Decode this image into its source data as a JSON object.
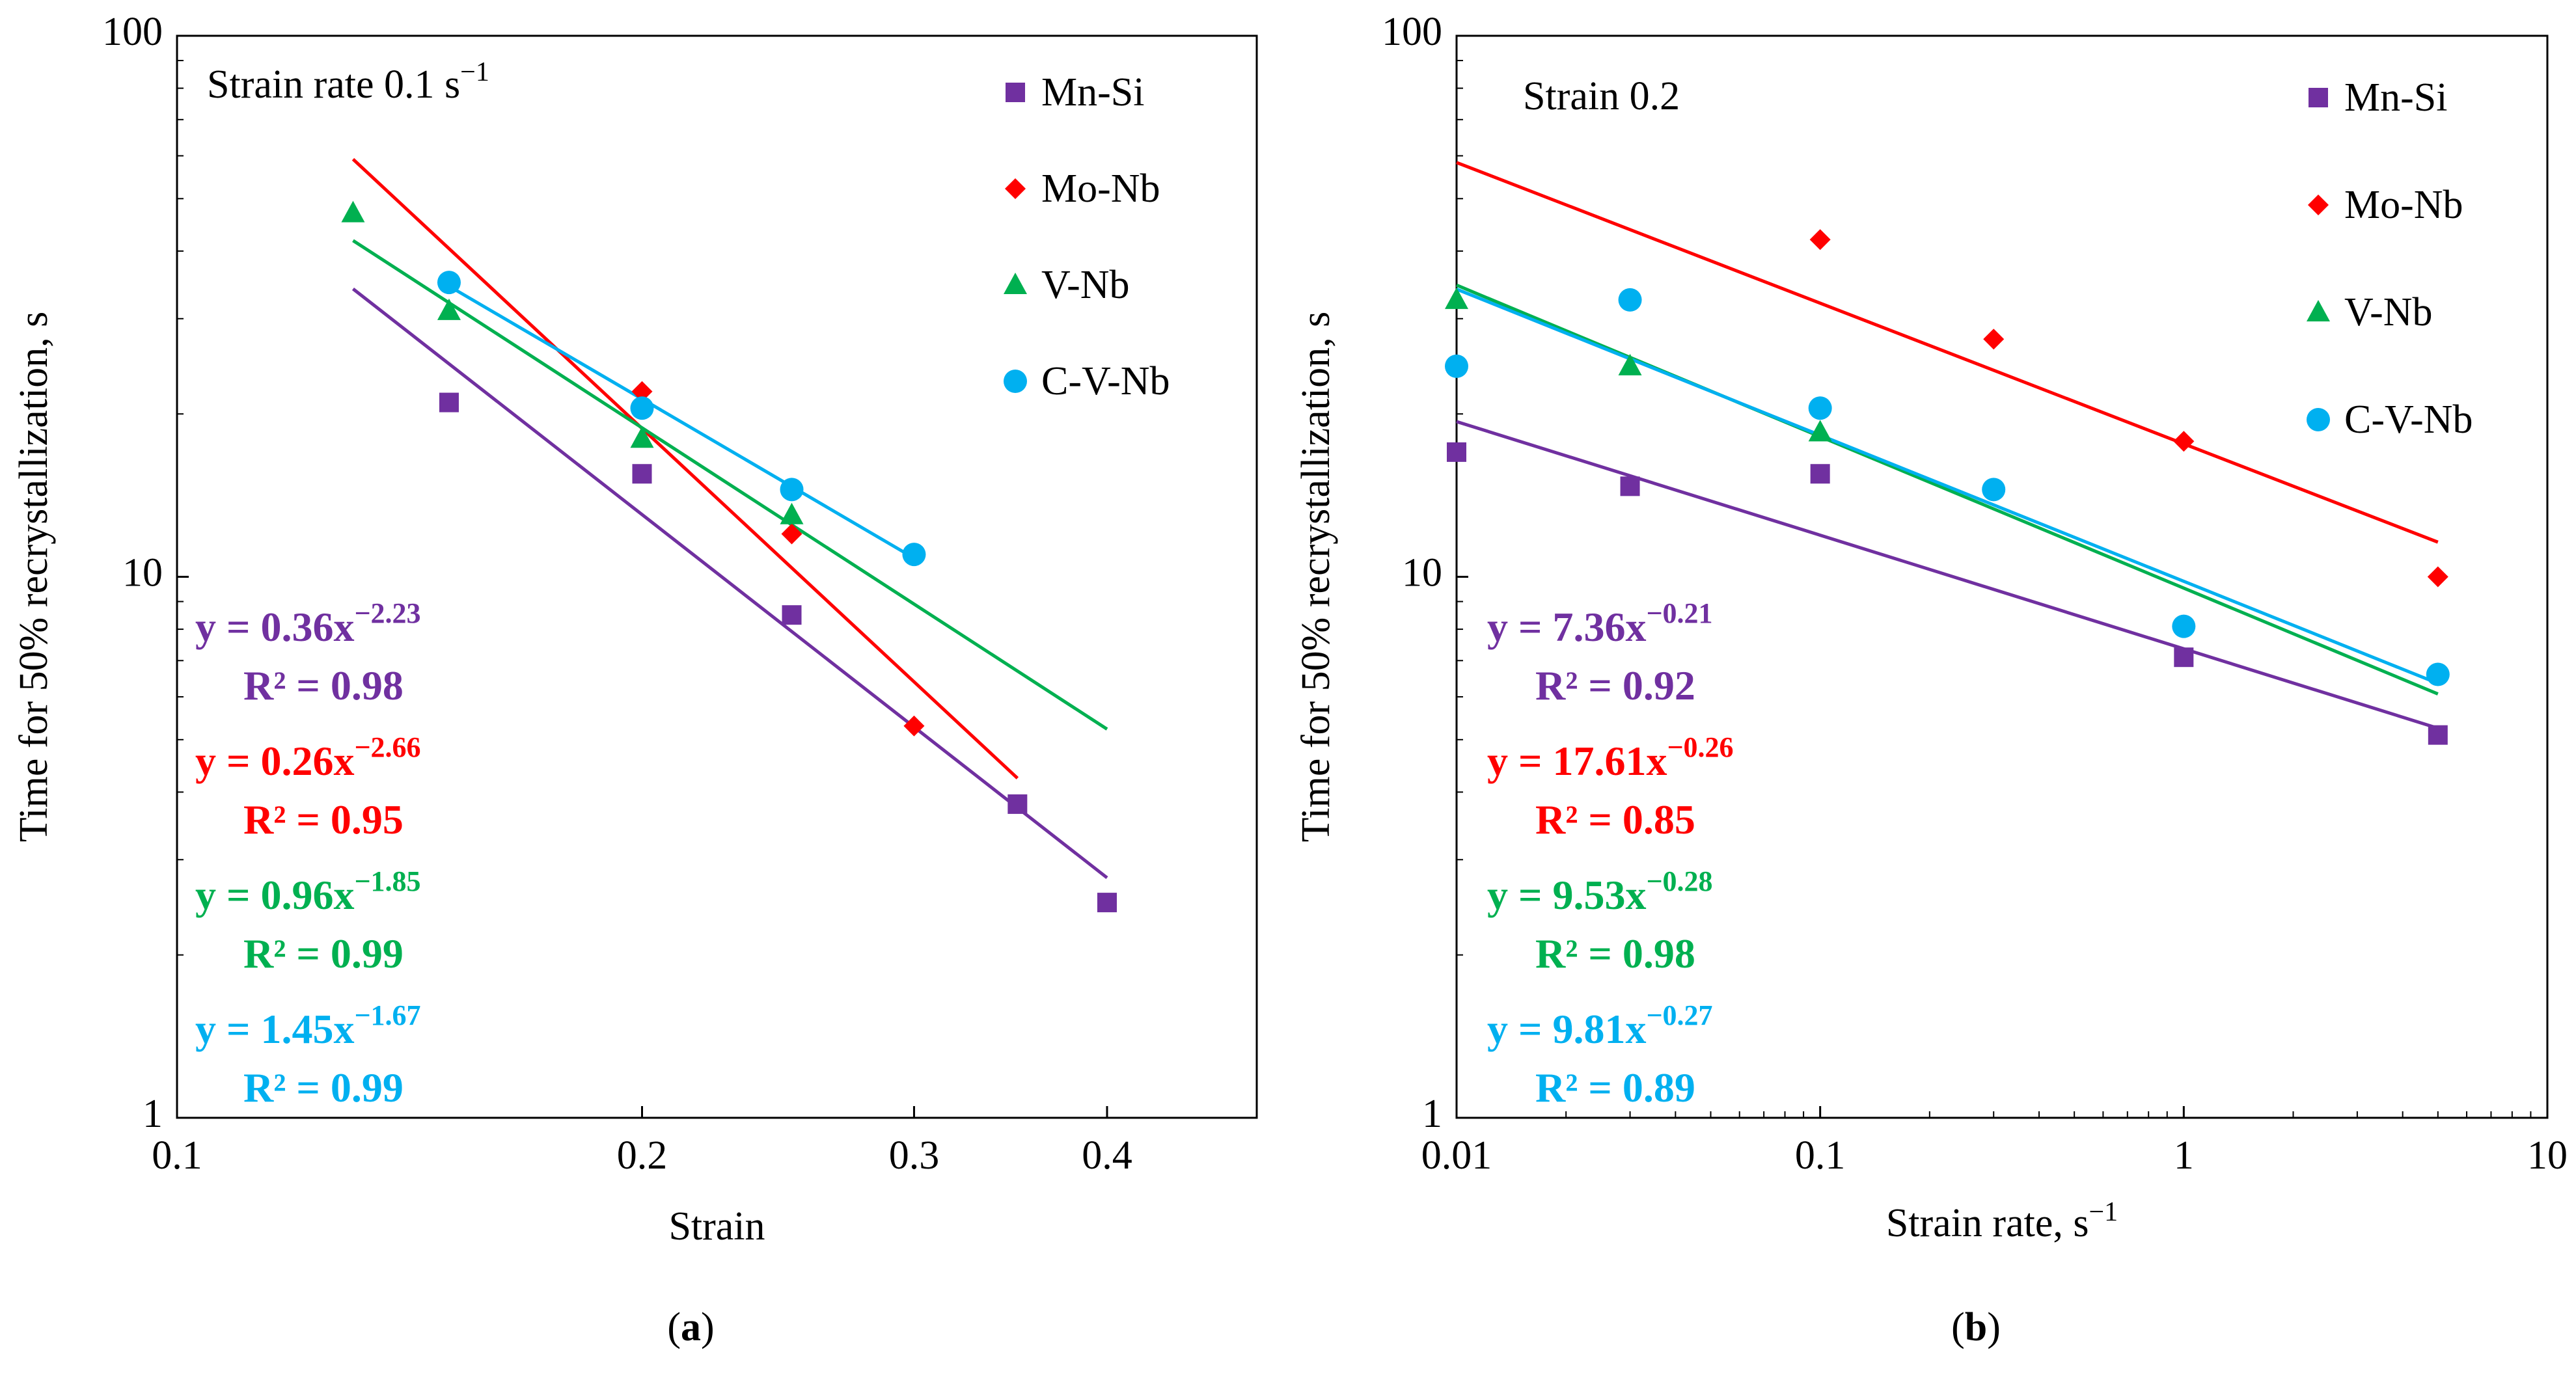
{
  "chart_data": [
    {
      "type": "scatter",
      "id": "a",
      "panel_label": "(a)",
      "panel_letter": "a",
      "xscale": "log",
      "yscale": "log",
      "xlabel": "Strain",
      "ylabel": "Time for 50% recrystallization, s",
      "xlim": [
        0.1,
        0.5
      ],
      "ylim": [
        1,
        100
      ],
      "x_ticks": [
        {
          "v": 0.1,
          "label": "0.1"
        },
        {
          "v": 0.2,
          "label": "0.2"
        },
        {
          "v": 0.3,
          "label": "0.3"
        },
        {
          "v": 0.4,
          "label": "0.4"
        }
      ],
      "y_ticks": [
        {
          "v": 1,
          "label": "1"
        },
        {
          "v": 10,
          "label": "10"
        },
        {
          "v": 100,
          "label": "100"
        }
      ],
      "condition": {
        "text": "Strain rate 0.1 s",
        "sup": "−1"
      },
      "legend": [
        "Mn-Si",
        "Mo-Nb",
        "V-Nb",
        "C-V-Nb"
      ],
      "legend_position": "top-right",
      "series": [
        {
          "name": "Mn-Si",
          "color": "#7030a0",
          "marker": "square",
          "x": [
            0.15,
            0.2,
            0.25,
            0.35,
            0.4
          ],
          "y": [
            21,
            15.5,
            8.5,
            3.8,
            2.5
          ],
          "fit": {
            "a": 0.36,
            "b": -2.23,
            "x_range": [
              0.13,
              0.4
            ]
          },
          "eq": "y = 0.36x",
          "eq_exp": "−2.23",
          "r2": "R² = 0.98"
        },
        {
          "name": "Mo-Nb",
          "color": "#ff0000",
          "marker": "diamond",
          "x": [
            0.2,
            0.25,
            0.3
          ],
          "y": [
            22,
            12,
            5.3
          ],
          "fit": {
            "a": 0.26,
            "b": -2.66,
            "x_range": [
              0.13,
              0.35
            ]
          },
          "eq": "y = 0.26x",
          "eq_exp": "−2.66",
          "r2": "R² = 0.95"
        },
        {
          "name": "V-Nb",
          "color": "#00b050",
          "marker": "triangle",
          "x": [
            0.13,
            0.15,
            0.2,
            0.25
          ],
          "y": [
            47,
            31,
            18,
            13
          ],
          "fit": {
            "a": 0.96,
            "b": -1.85,
            "x_range": [
              0.13,
              0.4
            ]
          },
          "eq": "y = 0.96x",
          "eq_exp": "−1.85",
          "r2": "R² = 0.99"
        },
        {
          "name": "C-V-Nb",
          "color": "#00b0f0",
          "marker": "circle",
          "x": [
            0.15,
            0.2,
            0.25,
            0.3
          ],
          "y": [
            35,
            20.5,
            14.5,
            11
          ],
          "fit": {
            "a": 1.45,
            "b": -1.67,
            "x_range": [
              0.15,
              0.3
            ]
          },
          "eq": "y = 1.45x",
          "eq_exp": "−1.67",
          "r2": "R² = 0.99"
        }
      ]
    },
    {
      "type": "scatter",
      "id": "b",
      "panel_label": "(b)",
      "panel_letter": "b",
      "xscale": "log",
      "yscale": "log",
      "xlabel": "Strain rate, s",
      "xlabel_sup": "−1",
      "ylabel": "Time for 50% recrystallization, s",
      "xlim": [
        0.01,
        10
      ],
      "ylim": [
        1,
        100
      ],
      "x_ticks": [
        {
          "v": 0.01,
          "label": "0.01"
        },
        {
          "v": 0.1,
          "label": "0.1"
        },
        {
          "v": 1,
          "label": "1"
        },
        {
          "v": 10,
          "label": "10"
        }
      ],
      "y_ticks": [
        {
          "v": 1,
          "label": "1"
        },
        {
          "v": 10,
          "label": "10"
        },
        {
          "v": 100,
          "label": "100"
        }
      ],
      "condition": {
        "text": "Strain 0.2",
        "sup": ""
      },
      "legend": [
        "Mn-Si",
        "Mo-Nb",
        "V-Nb",
        "C-V-Nb"
      ],
      "legend_position": "top-right",
      "series": [
        {
          "name": "Mn-Si",
          "color": "#7030a0",
          "marker": "square",
          "x": [
            0.01,
            0.03,
            0.1,
            1,
            5
          ],
          "y": [
            17,
            14.7,
            15.5,
            7.1,
            5.1
          ],
          "fit": {
            "a": 7.36,
            "b": -0.21,
            "x_range": [
              0.01,
              5
            ]
          },
          "eq": "y = 7.36x",
          "eq_exp": "−0.21",
          "r2": "R² = 0.92"
        },
        {
          "name": "Mo-Nb",
          "color": "#ff0000",
          "marker": "diamond",
          "x": [
            0.1,
            0.3,
            1,
            5
          ],
          "y": [
            42,
            27.5,
            17.8,
            10
          ],
          "fit": {
            "a": 17.61,
            "b": -0.26,
            "x_range": [
              0.01,
              5
            ]
          },
          "eq": "y = 17.61x",
          "eq_exp": "−0.26",
          "r2": "R² = 0.85"
        },
        {
          "name": "V-Nb",
          "color": "#00b050",
          "marker": "triangle",
          "x": [
            0.01,
            0.03,
            0.1
          ],
          "y": [
            32.5,
            24.5,
            18.5
          ],
          "fit": {
            "a": 9.53,
            "b": -0.28,
            "x_range": [
              0.01,
              5
            ]
          },
          "eq": "y = 9.53x",
          "eq_exp": "−0.28",
          "r2": "R² = 0.98"
        },
        {
          "name": "C-V-Nb",
          "color": "#00b0f0",
          "marker": "circle",
          "x": [
            0.01,
            0.03,
            0.1,
            0.3,
            1,
            5
          ],
          "y": [
            24.5,
            32.5,
            20.5,
            14.5,
            8.1,
            6.6
          ],
          "fit": {
            "a": 9.81,
            "b": -0.27,
            "x_range": [
              0.01,
              5
            ]
          },
          "eq": "y = 9.81x",
          "eq_exp": "−0.27",
          "r2": "R² = 0.89"
        }
      ]
    }
  ]
}
